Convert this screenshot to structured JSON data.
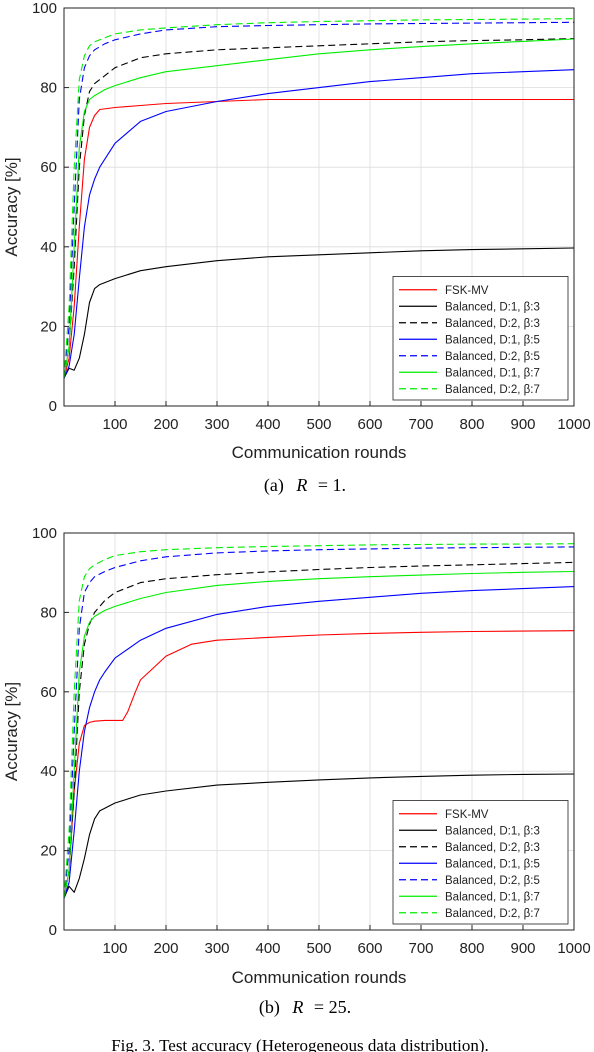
{
  "figure_caption": "Fig. 3.  Test accuracy (Heterogeneous data distribution).",
  "chart_data": [
    {
      "type": "line",
      "subcaption": "(a)  R = 1.",
      "subcaption_prefix": "(a)",
      "subcaption_var": "R",
      "subcaption_rest": "= 1.",
      "xlabel": "Communication rounds",
      "ylabel": "Accuracy [%]",
      "xlim": [
        0,
        1000
      ],
      "ylim": [
        0,
        100
      ],
      "xticks": [
        100,
        200,
        300,
        400,
        500,
        600,
        700,
        800,
        900,
        1000
      ],
      "yticks": [
        0,
        20,
        40,
        60,
        80,
        100
      ],
      "grid": true,
      "legend_position": "bottom-right",
      "series": [
        {
          "name": "FSK-MV",
          "color": "#ff0000",
          "dash": "solid",
          "x": [
            0,
            10,
            20,
            30,
            40,
            50,
            60,
            70,
            100,
            150,
            200,
            300,
            400,
            500,
            600,
            700,
            800,
            900,
            1000
          ],
          "y": [
            7,
            12,
            25,
            45,
            62,
            70,
            73,
            74.5,
            75,
            75.5,
            76,
            76.5,
            77,
            77,
            77,
            77,
            77,
            77,
            77
          ]
        },
        {
          "name": "Balanced, D:1, β:3",
          "color": "#000000",
          "dash": "solid",
          "x": [
            0,
            10,
            20,
            30,
            40,
            50,
            60,
            70,
            80,
            100,
            150,
            200,
            300,
            400,
            500,
            600,
            700,
            800,
            900,
            1000
          ],
          "y": [
            7,
            9.5,
            9,
            12,
            18,
            26,
            29.5,
            30.5,
            31,
            32,
            34,
            35,
            36.5,
            37.5,
            38,
            38.5,
            39,
            39.3,
            39.5,
            39.7
          ]
        },
        {
          "name": "Balanced, D:2, β:3",
          "color": "#000000",
          "dash": "dashed",
          "x": [
            0,
            10,
            20,
            30,
            40,
            50,
            60,
            80,
            100,
            150,
            200,
            300,
            400,
            500,
            600,
            700,
            800,
            900,
            1000
          ],
          "y": [
            7,
            15,
            35,
            60,
            73,
            79,
            81,
            83,
            85,
            87.5,
            88.5,
            89.5,
            90,
            90.5,
            91,
            91.5,
            91.8,
            92,
            92.3
          ]
        },
        {
          "name": "Balanced, D:1, β:5",
          "color": "#0000ff",
          "dash": "solid",
          "x": [
            0,
            10,
            20,
            30,
            40,
            50,
            60,
            70,
            80,
            100,
            150,
            200,
            300,
            400,
            500,
            600,
            700,
            800,
            900,
            1000
          ],
          "y": [
            7,
            10,
            18,
            32,
            45,
            53,
            57,
            60,
            62,
            66,
            71.5,
            74,
            76.5,
            78.5,
            80,
            81.5,
            82.5,
            83.5,
            84,
            84.5
          ]
        },
        {
          "name": "Balanced, D:2, β:5",
          "color": "#0000ff",
          "dash": "dashed",
          "x": [
            0,
            10,
            20,
            30,
            40,
            50,
            60,
            80,
            100,
            150,
            200,
            300,
            400,
            500,
            600,
            700,
            800,
            900,
            1000
          ],
          "y": [
            7,
            20,
            50,
            77,
            85,
            88,
            89.5,
            91,
            92,
            93.5,
            94.5,
            95.3,
            95.6,
            95.8,
            96,
            96.1,
            96.2,
            96.3,
            96.4
          ]
        },
        {
          "name": "Balanced, D:1, β:7",
          "color": "#00ee00",
          "dash": "solid",
          "x": [
            0,
            10,
            20,
            30,
            40,
            50,
            60,
            80,
            100,
            150,
            200,
            300,
            400,
            500,
            600,
            700,
            800,
            900,
            1000
          ],
          "y": [
            7,
            15,
            40,
            65,
            74,
            77,
            78,
            79.5,
            80.5,
            82.5,
            84,
            85.5,
            87,
            88.5,
            89.5,
            90.3,
            91,
            91.6,
            92.2
          ]
        },
        {
          "name": "Balanced, D:2, β:7",
          "color": "#00ee00",
          "dash": "dashed",
          "x": [
            0,
            10,
            20,
            30,
            40,
            50,
            60,
            80,
            100,
            150,
            200,
            300,
            400,
            500,
            600,
            700,
            800,
            900,
            1000
          ],
          "y": [
            7,
            25,
            60,
            82,
            88,
            90.5,
            91.5,
            92.5,
            93.5,
            94.5,
            95,
            95.8,
            96.3,
            96.6,
            96.8,
            97,
            97.1,
            97.2,
            97.3
          ]
        }
      ]
    },
    {
      "type": "line",
      "subcaption": "(b)  R = 25.",
      "subcaption_prefix": "(b)",
      "subcaption_var": "R",
      "subcaption_rest": "= 25.",
      "xlabel": "Communication rounds",
      "ylabel": "Accuracy [%]",
      "xlim": [
        0,
        1000
      ],
      "ylim": [
        0,
        100
      ],
      "xticks": [
        100,
        200,
        300,
        400,
        500,
        600,
        700,
        800,
        900,
        1000
      ],
      "yticks": [
        0,
        20,
        40,
        60,
        80,
        100
      ],
      "grid": true,
      "legend_position": "bottom-right",
      "series": [
        {
          "name": "FSK-MV",
          "color": "#ff0000",
          "dash": "solid",
          "x": [
            0,
            10,
            20,
            30,
            40,
            50,
            60,
            80,
            100,
            115,
            125,
            140,
            150,
            175,
            200,
            250,
            300,
            400,
            500,
            600,
            700,
            800,
            900,
            1000
          ],
          "y": [
            8,
            15,
            35,
            47,
            51.5,
            52.3,
            52.6,
            52.8,
            52.8,
            52.8,
            55,
            60,
            63,
            66,
            69,
            72,
            73,
            73.7,
            74.3,
            74.7,
            75,
            75.2,
            75.3,
            75.4
          ]
        },
        {
          "name": "Balanced, D:1, β:3",
          "color": "#000000",
          "dash": "solid",
          "x": [
            0,
            10,
            20,
            30,
            40,
            50,
            60,
            70,
            100,
            150,
            200,
            300,
            400,
            500,
            600,
            700,
            800,
            900,
            1000
          ],
          "y": [
            8,
            11,
            9.5,
            13,
            18,
            24,
            28,
            30,
            32,
            34,
            35,
            36.5,
            37.2,
            37.8,
            38.3,
            38.7,
            39,
            39.2,
            39.3
          ]
        },
        {
          "name": "Balanced, D:2, β:3",
          "color": "#000000",
          "dash": "dashed",
          "x": [
            0,
            10,
            20,
            30,
            40,
            50,
            60,
            80,
            100,
            150,
            200,
            300,
            400,
            500,
            600,
            700,
            800,
            900,
            1000
          ],
          "y": [
            8,
            15,
            35,
            60,
            72,
            77,
            80,
            83,
            85,
            87.5,
            88.5,
            89.5,
            90.2,
            90.8,
            91.3,
            91.7,
            92,
            92.3,
            92.6
          ]
        },
        {
          "name": "Balanced, D:1, β:5",
          "color": "#0000ff",
          "dash": "solid",
          "x": [
            0,
            10,
            20,
            30,
            40,
            50,
            60,
            70,
            80,
            100,
            150,
            200,
            300,
            400,
            500,
            600,
            700,
            800,
            900,
            1000
          ],
          "y": [
            8,
            12,
            25,
            40,
            50,
            56,
            60,
            63,
            65,
            68.5,
            73,
            76,
            79.5,
            81.5,
            82.8,
            83.8,
            84.8,
            85.5,
            86,
            86.5
          ]
        },
        {
          "name": "Balanced, D:2, β:5",
          "color": "#0000ff",
          "dash": "dashed",
          "x": [
            0,
            10,
            20,
            30,
            40,
            50,
            60,
            80,
            100,
            150,
            200,
            300,
            400,
            500,
            600,
            700,
            800,
            900,
            1000
          ],
          "y": [
            8,
            20,
            50,
            76,
            85,
            87.5,
            89,
            90.3,
            91.3,
            93,
            94,
            95,
            95.5,
            95.8,
            96,
            96.2,
            96.3,
            96.4,
            96.5
          ]
        },
        {
          "name": "Balanced, D:1, β:7",
          "color": "#00ee00",
          "dash": "solid",
          "x": [
            0,
            10,
            20,
            30,
            40,
            50,
            60,
            80,
            100,
            150,
            200,
            300,
            400,
            500,
            600,
            700,
            800,
            900,
            1000
          ],
          "y": [
            8,
            15,
            40,
            65,
            74,
            77.5,
            79,
            80.5,
            81.5,
            83.5,
            85,
            86.8,
            87.8,
            88.5,
            89,
            89.4,
            89.8,
            90.1,
            90.3
          ]
        },
        {
          "name": "Balanced, D:2, β:7",
          "color": "#00ee00",
          "dash": "dashed",
          "x": [
            0,
            10,
            20,
            30,
            40,
            50,
            60,
            80,
            100,
            150,
            200,
            300,
            400,
            500,
            600,
            700,
            800,
            900,
            1000
          ],
          "y": [
            8,
            25,
            60,
            83,
            89,
            91,
            92,
            93.3,
            94.3,
            95.3,
            95.8,
            96.3,
            96.6,
            96.8,
            97,
            97.1,
            97.2,
            97.2,
            97.3
          ]
        }
      ]
    }
  ]
}
